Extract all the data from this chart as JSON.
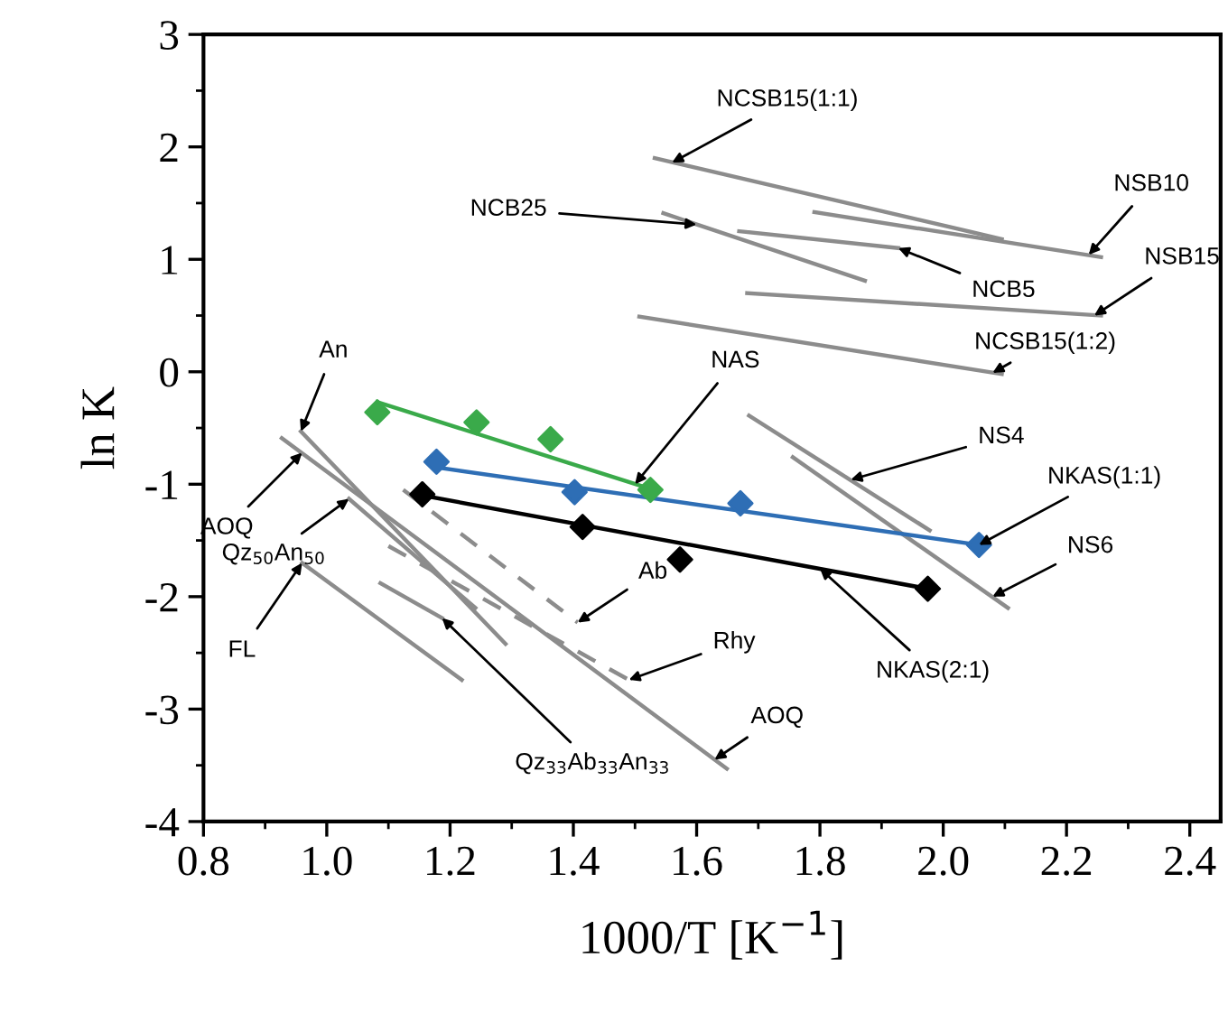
{
  "chart_data": {
    "type": "line",
    "xlabel": "1000/T [K$^{−1}$]",
    "ylabel": "ln K",
    "xlim": [
      0.8,
      2.45
    ],
    "ylim": [
      -4,
      3
    ],
    "xticks": [
      0.8,
      {
        "value": 1,
        "label": "1.0"
      },
      1.2,
      1.4,
      1.6,
      1.8,
      {
        "value": 2,
        "label": "2.0"
      },
      2.2,
      2.4
    ],
    "yticks": [
      -4,
      -3,
      -2,
      -1,
      0,
      1,
      2,
      3
    ],
    "grid": false,
    "legend": false,
    "series": [
      {
        "type": "line",
        "color": "#8c8c8c",
        "x": [
          1.532,
          2.095
        ],
        "values": [
          1.9,
          1.18
        ]
      },
      {
        "type": "line",
        "color": "#8c8c8c",
        "x": [
          1.791,
          2.256
        ],
        "values": [
          1.42,
          1.02
        ]
      },
      {
        "type": "line",
        "color": "#8c8c8c",
        "x": [
          1.546,
          1.873
        ],
        "values": [
          1.41,
          0.81
        ]
      },
      {
        "type": "line",
        "color": "#8c8c8c",
        "x": [
          1.669,
          1.927
        ],
        "values": [
          1.25,
          1.1
        ]
      },
      {
        "type": "line",
        "color": "#8c8c8c",
        "x": [
          1.682,
          2.256
        ],
        "values": [
          0.7,
          0.5
        ]
      },
      {
        "type": "line",
        "color": "#8c8c8c",
        "x": [
          1.507,
          2.095
        ],
        "values": [
          0.49,
          -0.02
        ]
      },
      {
        "type": "line",
        "color": "#8c8c8c",
        "x": [
          1.685,
          1.978
        ],
        "values": [
          -0.39,
          -1.41
        ]
      },
      {
        "type": "line",
        "color": "#8c8c8c",
        "x": [
          1.756,
          2.105
        ],
        "values": [
          -0.76,
          -2.1
        ]
      },
      {
        "type": "line",
        "color": "#8c8c8c",
        "x": [
          0.958,
          1.29
        ],
        "values": [
          -0.53,
          -2.42
        ]
      },
      {
        "type": "line",
        "color": "#8c8c8c",
        "x": [
          0.927,
          1.649
        ],
        "values": [
          -0.59,
          -3.53
        ]
      },
      {
        "type": "line",
        "color": "#8c8c8c",
        "x": [
          1.036,
          1.241
        ],
        "values": [
          -1.13,
          -2.1
        ]
      },
      {
        "type": "line",
        "color": "#8c8c8c",
        "x": [
          0.96,
          1.219
        ],
        "values": [
          -1.7,
          -2.74
        ]
      },
      {
        "type": "line",
        "color": "#8c8c8c",
        "x": [
          1.087,
          1.187
        ],
        "values": [
          -1.88,
          -2.19
        ]
      },
      {
        "type": "line",
        "color": "#8c8c8c",
        "line_style": "dashed",
        "x": [
          1.124,
          1.407
        ],
        "values": [
          -1.05,
          -2.23
        ]
      },
      {
        "type": "line",
        "color": "#8c8c8c",
        "line_style": "dashed",
        "x": [
          1.1,
          1.49
        ],
        "values": [
          -1.55,
          -2.74
        ]
      },
      {
        "type": "line",
        "color": "#3aaa4a",
        "x": [
          1.082,
          1.524
        ],
        "values": [
          -0.27,
          -1.04
        ]
      },
      {
        "type": "scatter",
        "marker": "diamond",
        "color": "#3aaa4a",
        "x": [
          1.082,
          1.243,
          1.363,
          1.525
        ],
        "values": [
          -0.36,
          -0.45,
          -0.6,
          -1.05
        ]
      },
      {
        "type": "line",
        "color": "#2e6eb5",
        "x": [
          1.178,
          2.058
        ],
        "values": [
          -0.85,
          -1.54
        ]
      },
      {
        "type": "scatter",
        "marker": "diamond",
        "color": "#2e6eb5",
        "x": [
          1.178,
          1.402,
          1.671,
          2.058
        ],
        "values": [
          -0.8,
          -1.07,
          -1.17,
          -1.54
        ]
      },
      {
        "type": "line",
        "color": "#000000",
        "x": [
          1.155,
          1.975
        ],
        "values": [
          -1.1,
          -1.93
        ]
      },
      {
        "type": "scatter",
        "marker": "diamond",
        "color": "#000000",
        "x": [
          1.155,
          1.415,
          1.573,
          1.975
        ],
        "values": [
          -1.09,
          -1.38,
          -1.67,
          -1.93
        ]
      }
    ],
    "annotations": [
      {
        "text": "NCSB15(1:1)",
        "x": 1.56,
        "y": 1.86
      },
      {
        "text": "NSB10",
        "x": 2.236,
        "y": 1.04
      },
      {
        "text": "NCB25",
        "x": 1.6,
        "y": 1.31
      },
      {
        "text": "NCB5",
        "x": 1.927,
        "y": 1.1
      },
      {
        "text": "NSB15",
        "x": 2.245,
        "y": 0.5
      },
      {
        "text": "NCSB15(1:2)",
        "x": 2.08,
        "y": -0.01
      },
      {
        "text": "An",
        "x": 0.958,
        "y": -0.53
      },
      {
        "text": "NAS",
        "x": 1.5,
        "y": -1.0
      },
      {
        "text": "NS4",
        "x": 1.85,
        "y": -0.96
      },
      {
        "text": "NKAS(1:1)",
        "x": 2.058,
        "y": -1.54
      },
      {
        "text": "NS6",
        "x": 2.08,
        "y": -2.0
      },
      {
        "text": "NKAS(2:1)",
        "x": 1.8,
        "y": -1.75
      },
      {
        "text": "AOQ",
        "x": 0.96,
        "y": -0.72
      },
      {
        "text": "Qz$_{50}$An$_{50}$",
        "x": 1.036,
        "y": -1.13
      },
      {
        "text": "Ab",
        "x": 1.407,
        "y": -2.23
      },
      {
        "text": "FL",
        "x": 0.96,
        "y": -1.7
      },
      {
        "text": "Rhy",
        "x": 1.49,
        "y": -2.74
      },
      {
        "text": "Qz$_{33}$Ab$_{33}$An$_{33}$",
        "x": 1.187,
        "y": -2.19
      },
      {
        "text": "AOQ",
        "x": 1.629,
        "y": -3.45
      }
    ]
  }
}
